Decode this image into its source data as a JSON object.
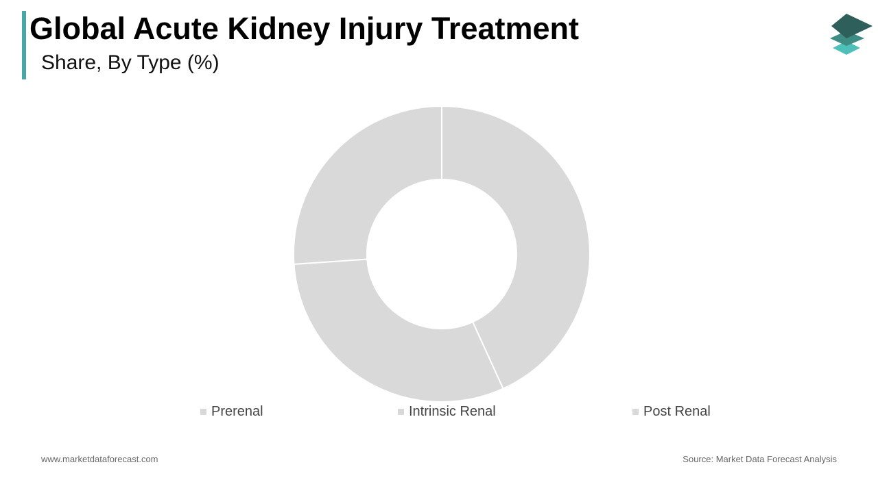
{
  "header": {
    "title": "Global Acute Kidney Injury Treatment",
    "subtitle": "Share, By Type (%)",
    "accent_color": "#4aa8a4"
  },
  "logo": {
    "icon": "layered-diamond-logo-icon",
    "colors": [
      "#2f5f5a",
      "#3f8c84",
      "#4fbfba"
    ]
  },
  "chart_data": {
    "type": "pie",
    "variant": "donut",
    "categories": [
      "Prerenal",
      "Intrinsic Renal",
      "Post Renal"
    ],
    "values": [
      43.2,
      30.7,
      26.1
    ],
    "unit": "%",
    "slice_color": "#d9d9d9",
    "legend_position": "bottom",
    "data_labels_shown": false
  },
  "footer": {
    "website": "www.marketdataforecast.com",
    "source": "Source: Market Data Forecast Analysis"
  }
}
